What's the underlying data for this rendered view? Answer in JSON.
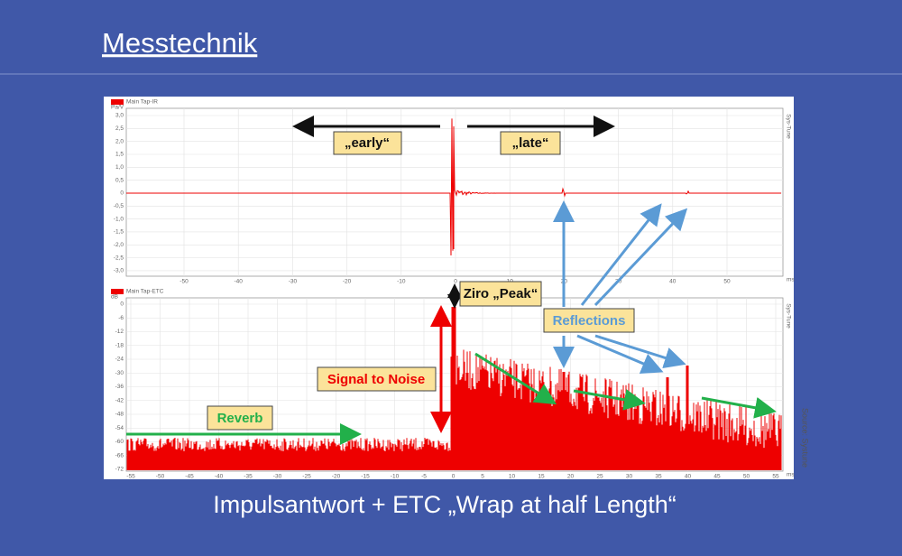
{
  "slide": {
    "title": "Messtechnik",
    "caption": "Impulsantwort + ETC „Wrap at half Length“",
    "source": "Source: Systune",
    "impulse_plot": {
      "legend": "Main Tap-IR",
      "unit": "Pa/V",
      "brand": "Sys-Tune",
      "y_ticks": [
        "3,0",
        "2,5",
        "2,0",
        "1,5",
        "1,0",
        "0,5",
        "0",
        "-0,5",
        "-1,0",
        "-1,5",
        "-2,0",
        "-2,5",
        "-3,0"
      ],
      "x_ticks": [
        "-50",
        "-40",
        "-30",
        "-20",
        "-10",
        "0",
        "10",
        "20",
        "30",
        "40",
        "50"
      ],
      "x_unit": "ms"
    },
    "etc_plot": {
      "legend": "Main Tap-ETC",
      "unit": "dB",
      "brand": "Sys-Tune",
      "y_ticks": [
        "0",
        "-6",
        "-12",
        "-18",
        "-24",
        "-30",
        "-36",
        "-42",
        "-48",
        "-54",
        "-60",
        "-66",
        "-72"
      ],
      "x_ticks": [
        "-55",
        "-50",
        "-45",
        "-40",
        "-35",
        "-30",
        "-25",
        "-20",
        "-15",
        "-10",
        "-5",
        "0",
        "5",
        "10",
        "15",
        "20",
        "25",
        "30",
        "35",
        "40",
        "45",
        "50",
        "55"
      ],
      "x_unit": "ms"
    },
    "annotations": {
      "early": "„early“",
      "late": "„late“",
      "peak": "Ziro „Peak“",
      "reflections": "Reflections",
      "snr": "Signal to Noise",
      "reverb": "Reverb"
    }
  }
}
